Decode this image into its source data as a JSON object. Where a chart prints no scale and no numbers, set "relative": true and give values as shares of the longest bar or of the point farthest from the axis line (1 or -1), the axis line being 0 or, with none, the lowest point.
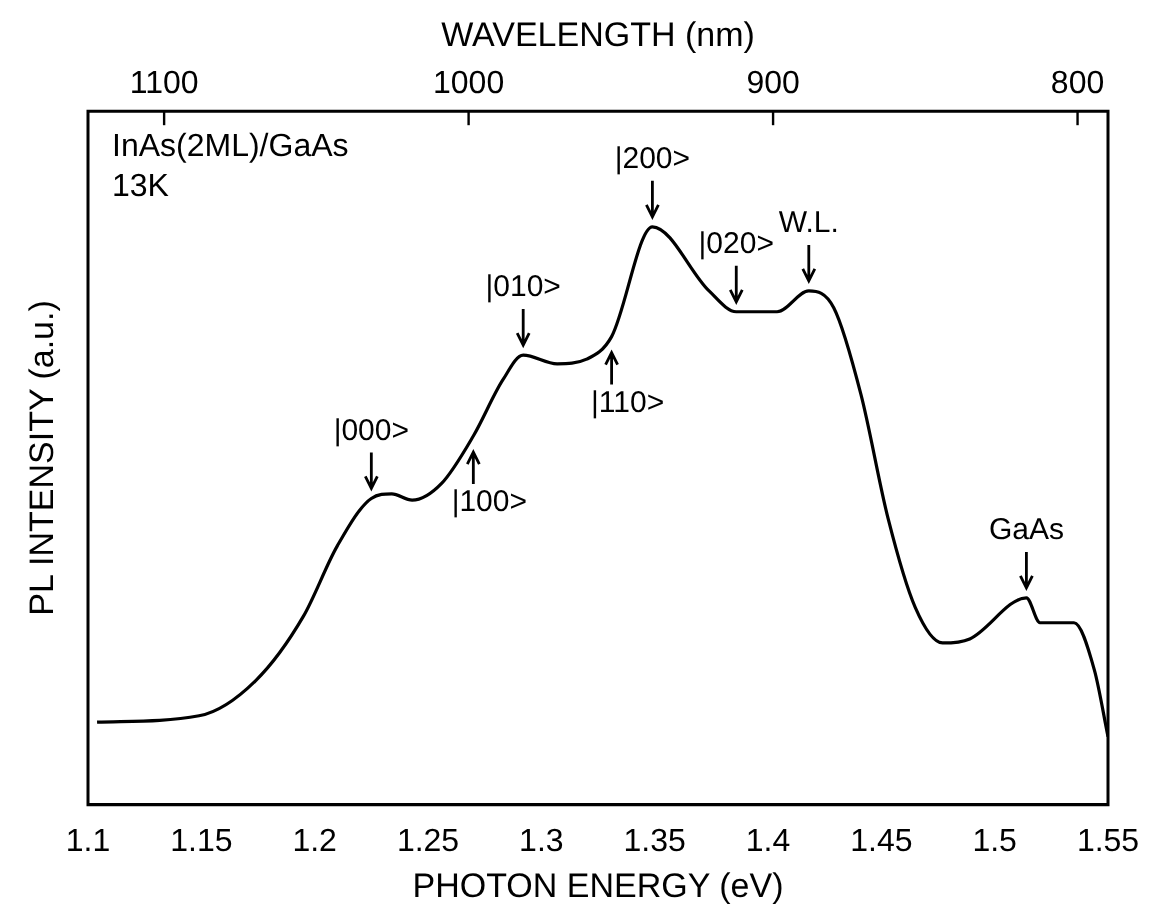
{
  "chart_data": {
    "type": "line",
    "relative": true,
    "xlabel": "PHOTON ENERGY (eV)",
    "ylabel": "PL INTENSITY (a.u.)",
    "x2label": "WAVELENGTH (nm)",
    "xlim": [
      1.1,
      1.55
    ],
    "xticks": [
      1.1,
      1.15,
      1.2,
      1.25,
      1.3,
      1.35,
      1.4,
      1.45,
      1.5,
      1.55
    ],
    "x2lim": [
      1125,
      790
    ],
    "x2ticks": [
      1100,
      1000,
      900,
      800
    ],
    "grid": false,
    "legend": false,
    "marker": "none",
    "line_style": "solid",
    "x": [
      1.104,
      1.149,
      1.174,
      1.195,
      1.21,
      1.225,
      1.234,
      1.243,
      1.256,
      1.27,
      1.283,
      1.292,
      1.307,
      1.32,
      1.331,
      1.349,
      1.374,
      1.386,
      1.404,
      1.418,
      1.429,
      1.441,
      1.453,
      1.465,
      1.477,
      1.489,
      1.514,
      1.52,
      1.535,
      1.544,
      1.55
    ],
    "series": [
      {
        "color": "#000000",
        "values": [
          0.143,
          0.154,
          0.215,
          0.326,
          0.448,
          0.53,
          0.538,
          0.527,
          0.556,
          0.638,
          0.735,
          0.778,
          0.763,
          0.771,
          0.81,
          1,
          0.889,
          0.853,
          0.853,
          0.889,
          0.86,
          0.71,
          0.495,
          0.341,
          0.28,
          0.287,
          0.358,
          0.315,
          0.315,
          0.233,
          0.118
        ]
      }
    ],
    "annotations": [
      "InAs(2ML)/GaAs",
      "13K",
      {
        "text": "|000>",
        "x": 1.225,
        "y": 0.53
      },
      {
        "text": "|100>",
        "x": 1.27,
        "y": 0.638
      },
      {
        "text": "|010>",
        "x": 1.292,
        "y": 0.778
      },
      {
        "text": "|110>",
        "x": 1.331,
        "y": 0.81
      },
      {
        "text": "|200>",
        "x": 1.349,
        "y": 1
      },
      {
        "text": "|020>",
        "x": 1.386,
        "y": 0.853
      },
      {
        "text": "W.L.",
        "x": 1.418,
        "y": 0.889
      },
      {
        "text": "GaAs",
        "x": 1.514,
        "y": 0.358
      }
    ]
  }
}
